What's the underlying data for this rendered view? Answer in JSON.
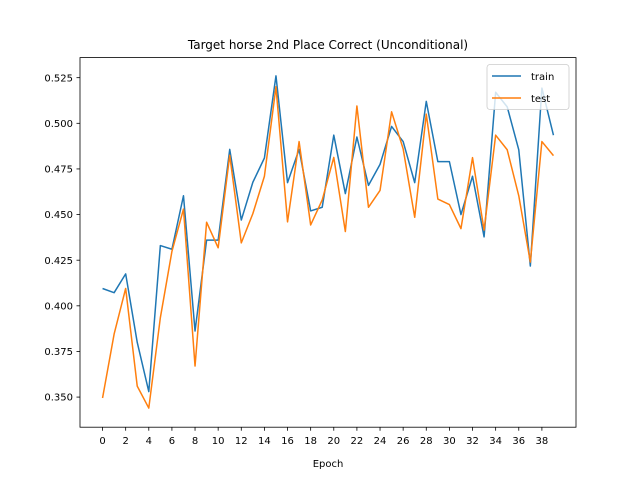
{
  "chart_data": {
    "type": "line",
    "title": "Target horse 2nd Place Correct (Unconditional)",
    "xlabel": "Epoch",
    "ylabel": "",
    "xlim": [
      -1.95,
      40.95
    ],
    "ylim": [
      0.3335,
      0.536
    ],
    "xticks": [
      0,
      2,
      4,
      6,
      8,
      10,
      12,
      14,
      16,
      18,
      20,
      22,
      24,
      26,
      28,
      30,
      32,
      34,
      36,
      38
    ],
    "yticks": [
      0.35,
      0.375,
      0.4,
      0.425,
      0.45,
      0.475,
      0.5,
      0.525
    ],
    "ytick_labels": [
      "0.350",
      "0.375",
      "0.400",
      "0.425",
      "0.450",
      "0.475",
      "0.500",
      "0.525"
    ],
    "legend_position": "top-right",
    "grid": false,
    "x": [
      0,
      1,
      2,
      3,
      4,
      5,
      6,
      7,
      8,
      9,
      10,
      11,
      12,
      13,
      14,
      15,
      16,
      17,
      18,
      19,
      20,
      21,
      22,
      23,
      24,
      25,
      26,
      27,
      28,
      29,
      30,
      31,
      32,
      33,
      34,
      35,
      36,
      37,
      38,
      39
    ],
    "series": [
      {
        "name": "train",
        "color": "#1f77b4",
        "values": [
          0.4095,
          0.4072,
          0.4175,
          0.38,
          0.353,
          0.433,
          0.431,
          0.4603,
          0.3862,
          0.436,
          0.436,
          0.4857,
          0.447,
          0.4677,
          0.481,
          0.526,
          0.4675,
          0.4857,
          0.452,
          0.454,
          0.4935,
          0.4615,
          0.4925,
          0.466,
          0.4775,
          0.4983,
          0.49,
          0.4675,
          0.512,
          0.479,
          0.479,
          0.45,
          0.471,
          0.4378,
          0.517,
          0.509,
          0.4855,
          0.4218,
          0.5193,
          0.4935
        ]
      },
      {
        "name": "test",
        "color": "#ff7f0e",
        "values": [
          0.3495,
          0.3845,
          0.4095,
          0.356,
          0.344,
          0.3935,
          0.4298,
          0.453,
          0.367,
          0.4458,
          0.4318,
          0.4825,
          0.4345,
          0.4505,
          0.471,
          0.52,
          0.446,
          0.49,
          0.4443,
          0.458,
          0.4813,
          0.4407,
          0.5095,
          0.454,
          0.4632,
          0.5063,
          0.486,
          0.4485,
          0.505,
          0.4585,
          0.4555,
          0.4423,
          0.4812,
          0.4415,
          0.4935,
          0.4855,
          0.4603,
          0.424,
          0.49,
          0.4823
        ]
      }
    ]
  }
}
